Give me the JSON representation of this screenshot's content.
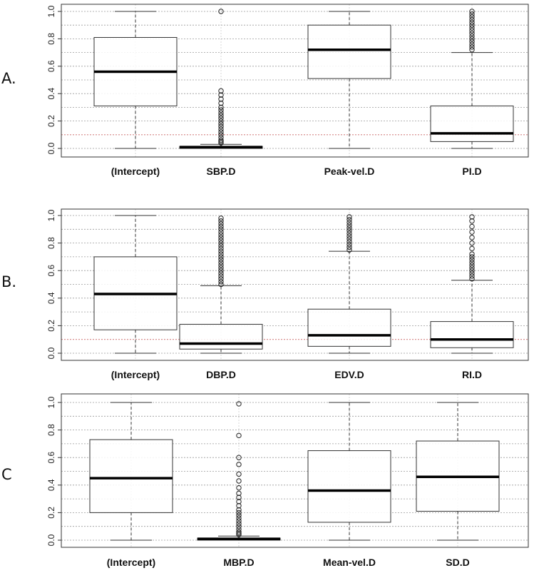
{
  "panel_labels": [
    "A.",
    "B.",
    "C"
  ],
  "chart_data": [
    {
      "type": "boxplot",
      "panel": "A.",
      "ylim": [
        0,
        1
      ],
      "yticks": [
        "0.0",
        "0.2",
        "0.4",
        "0.6",
        "0.8",
        "1.0"
      ],
      "grid": true,
      "reference_line": 0.1,
      "categories": [
        "(Intercept)",
        "SBP.D",
        "Peak-vel.D",
        "PI.D"
      ],
      "boxes": [
        {
          "name": "(Intercept)",
          "whisker_low": 0.0,
          "q1": 0.31,
          "median": 0.56,
          "q3": 0.81,
          "whisker_high": 1.0,
          "outliers": []
        },
        {
          "name": "SBP.D",
          "whisker_low": 0.0,
          "q1": 0.0,
          "median": 0.01,
          "q3": 0.015,
          "whisker_high": 0.03,
          "outliers": [
            0.04,
            0.05,
            0.06,
            0.08,
            0.1,
            0.12,
            0.14,
            0.16,
            0.18,
            0.2,
            0.22,
            0.24,
            0.26,
            0.28,
            0.3,
            0.33,
            0.36,
            0.39,
            0.42,
            1.0
          ]
        },
        {
          "name": "Peak-vel.D",
          "whisker_low": 0.0,
          "q1": 0.51,
          "median": 0.72,
          "q3": 0.9,
          "whisker_high": 1.0,
          "outliers": []
        },
        {
          "name": "PI.D",
          "whisker_low": 0.0,
          "q1": 0.05,
          "median": 0.11,
          "q3": 0.31,
          "whisker_high": 0.7,
          "outliers": [
            0.72,
            0.74,
            0.76,
            0.78,
            0.8,
            0.82,
            0.84,
            0.86,
            0.88,
            0.9,
            0.92,
            0.94,
            0.96,
            0.98,
            1.0
          ]
        }
      ]
    },
    {
      "type": "boxplot",
      "panel": "B.",
      "ylim": [
        0,
        1
      ],
      "yticks": [
        "0.0",
        "0.2",
        "0.4",
        "0.6",
        "0.8",
        "1.0"
      ],
      "grid": true,
      "reference_line": 0.1,
      "categories": [
        "(Intercept)",
        "DBP.D",
        "EDV.D",
        "RI.D"
      ],
      "boxes": [
        {
          "name": "(Intercept)",
          "whisker_low": 0.0,
          "q1": 0.17,
          "median": 0.43,
          "q3": 0.7,
          "whisker_high": 1.0,
          "outliers": []
        },
        {
          "name": "DBP.D",
          "whisker_low": 0.0,
          "q1": 0.03,
          "median": 0.07,
          "q3": 0.21,
          "whisker_high": 0.49,
          "outliers": [
            0.5,
            0.52,
            0.54,
            0.56,
            0.58,
            0.6,
            0.62,
            0.64,
            0.66,
            0.68,
            0.7,
            0.72,
            0.74,
            0.76,
            0.78,
            0.8,
            0.82,
            0.84,
            0.86,
            0.88,
            0.9,
            0.92,
            0.94,
            0.96,
            0.98
          ]
        },
        {
          "name": "EDV.D",
          "whisker_low": 0.0,
          "q1": 0.05,
          "median": 0.13,
          "q3": 0.32,
          "whisker_high": 0.74,
          "outliers": [
            0.75,
            0.77,
            0.79,
            0.81,
            0.83,
            0.85,
            0.87,
            0.89,
            0.91,
            0.93,
            0.95,
            0.97,
            0.99
          ]
        },
        {
          "name": "RI.D",
          "whisker_low": 0.0,
          "q1": 0.04,
          "median": 0.1,
          "q3": 0.23,
          "whisker_high": 0.53,
          "outliers": [
            0.54,
            0.56,
            0.58,
            0.6,
            0.62,
            0.64,
            0.66,
            0.68,
            0.7,
            0.72,
            0.76,
            0.8,
            0.84,
            0.88,
            0.92,
            0.96,
            0.99
          ]
        }
      ]
    },
    {
      "type": "boxplot",
      "panel": "C",
      "ylim": [
        0,
        1
      ],
      "yticks": [
        "0.0",
        "0.2",
        "0.4",
        "0.6",
        "0.8",
        "1.0"
      ],
      "grid": true,
      "reference_line": null,
      "categories": [
        "(Intercept)",
        "MBP.D",
        "Mean-vel.D",
        "SD.D"
      ],
      "boxes": [
        {
          "name": "(Intercept)",
          "whisker_low": 0.0,
          "q1": 0.2,
          "median": 0.45,
          "q3": 0.73,
          "whisker_high": 1.0,
          "outliers": []
        },
        {
          "name": "MBP.D",
          "whisker_low": 0.0,
          "q1": 0.0,
          "median": 0.01,
          "q3": 0.015,
          "whisker_high": 0.03,
          "outliers": [
            0.04,
            0.05,
            0.06,
            0.08,
            0.1,
            0.12,
            0.14,
            0.16,
            0.18,
            0.2,
            0.22,
            0.25,
            0.28,
            0.31,
            0.34,
            0.38,
            0.43,
            0.48,
            0.55,
            0.6,
            0.76,
            0.99
          ]
        },
        {
          "name": "Mean-vel.D",
          "whisker_low": 0.0,
          "q1": 0.13,
          "median": 0.36,
          "q3": 0.65,
          "whisker_high": 1.0,
          "outliers": []
        },
        {
          "name": "SD.D",
          "whisker_low": 0.0,
          "q1": 0.21,
          "median": 0.46,
          "q3": 0.72,
          "whisker_high": 1.0,
          "outliers": []
        }
      ]
    }
  ]
}
